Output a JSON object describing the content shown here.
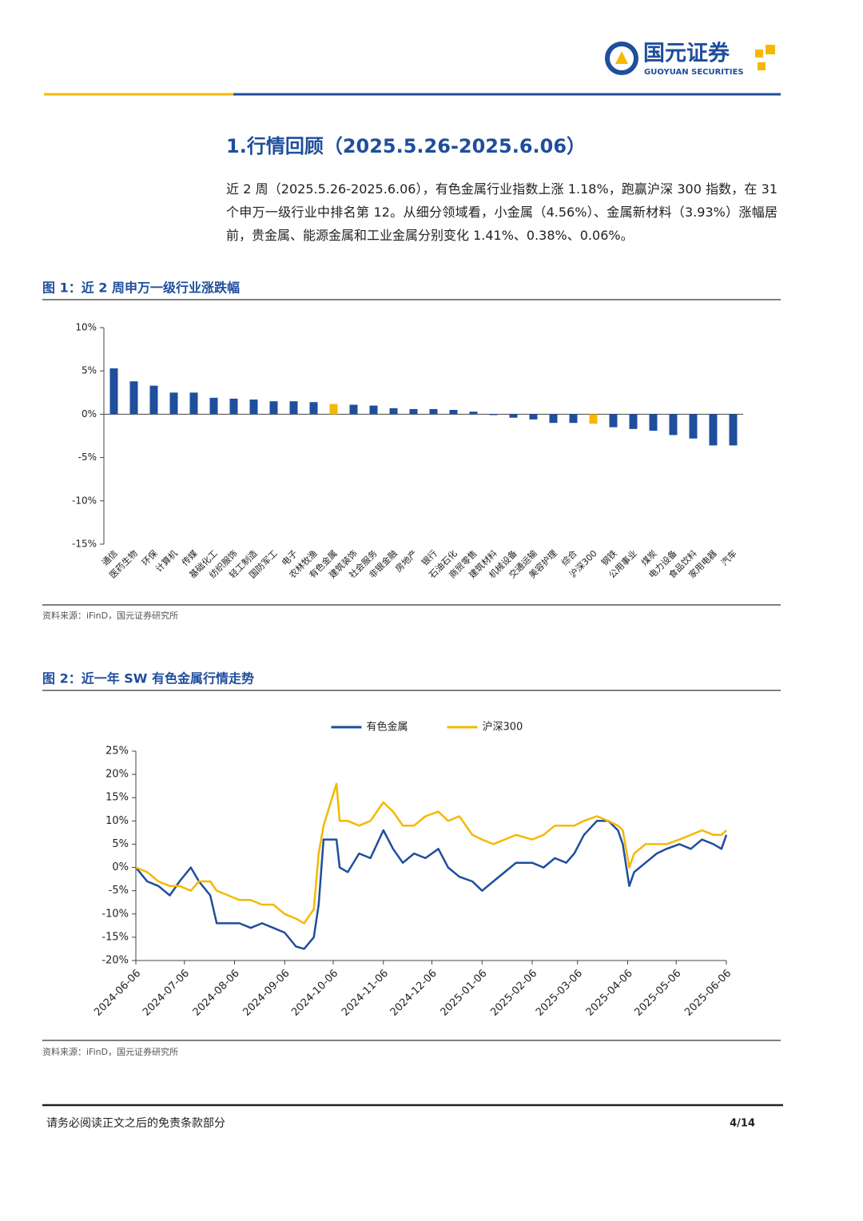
{
  "header": {
    "logo_cn": "国元证券",
    "logo_en": "GUOYUAN SECURITIES"
  },
  "section": {
    "title": "1.行情回顾（2025.5.26-2025.6.06）",
    "paragraph": "近 2 周（2025.5.26-2025.6.06），有色金属行业指数上涨 1.18%，跑赢沪深 300 指数，在 31 个申万一级行业中排名第 12。从细分领域看，小金属（4.56%）、金属新材料（3.93%）涨幅居前，贵金属、能源金属和工业金属分别变化 1.41%、0.38%、0.06%。"
  },
  "figures": [
    {
      "title": "图 1：近 2 周申万一级行业涨跌幅",
      "source": "资料来源：iFinD，国元证券研究所"
    },
    {
      "title": "图 2：近一年 SW 有色金属行情走势",
      "source": "资料来源：iFinD，国元证券研究所"
    }
  ],
  "chart_data": [
    {
      "type": "bar",
      "categories": [
        "通信",
        "医药生物",
        "环保",
        "计算机",
        "传媒",
        "基础化工",
        "纺织服饰",
        "轻工制造",
        "国防军工",
        "电子",
        "农林牧渔",
        "有色金属",
        "建筑装饰",
        "社会服务",
        "非银金融",
        "房地产",
        "银行",
        "石油石化",
        "商贸零售",
        "建筑材料",
        "机械设备",
        "交通运输",
        "美容护理",
        "综合",
        "沪深300",
        "钢铁",
        "公用事业",
        "煤炭",
        "电力设备",
        "食品饮料",
        "家用电器",
        "汽车"
      ],
      "values": [
        5.3,
        3.8,
        3.3,
        2.5,
        2.5,
        1.9,
        1.8,
        1.7,
        1.5,
        1.5,
        1.4,
        1.18,
        1.1,
        1.0,
        0.7,
        0.6,
        0.6,
        0.5,
        0.3,
        -0.1,
        -0.4,
        -0.6,
        -1.0,
        -1.0,
        -1.1,
        -1.5,
        -1.7,
        -1.9,
        -2.4,
        -2.8,
        -3.6,
        -3.6
      ],
      "colors": [
        "#1f4e9c",
        "#1f4e9c",
        "#1f4e9c",
        "#1f4e9c",
        "#1f4e9c",
        "#1f4e9c",
        "#1f4e9c",
        "#1f4e9c",
        "#1f4e9c",
        "#1f4e9c",
        "#1f4e9c",
        "#f5b800",
        "#1f4e9c",
        "#1f4e9c",
        "#1f4e9c",
        "#1f4e9c",
        "#1f4e9c",
        "#1f4e9c",
        "#1f4e9c",
        "#1f4e9c",
        "#1f4e9c",
        "#1f4e9c",
        "#1f4e9c",
        "#1f4e9c",
        "#f5b800",
        "#1f4e9c",
        "#1f4e9c",
        "#1f4e9c",
        "#1f4e9c",
        "#1f4e9c",
        "#1f4e9c",
        "#1f4e9c"
      ],
      "ylim": [
        -15,
        10
      ],
      "yticks": [
        {
          "value": 10,
          "label": "10%"
        },
        {
          "value": 5,
          "label": "5%"
        },
        {
          "value": 0,
          "label": "0%"
        },
        {
          "value": -5,
          "label": "-5%"
        },
        {
          "value": -10,
          "label": "-10%"
        },
        {
          "value": -15,
          "label": "-15%"
        }
      ]
    },
    {
      "type": "line",
      "x": [
        "2024-06-06",
        "2024-06-13",
        "2024-06-20",
        "2024-06-27",
        "2024-07-03",
        "2024-07-10",
        "2024-07-15",
        "2024-07-22",
        "2024-07-26",
        "2024-08-02",
        "2024-08-09",
        "2024-08-16",
        "2024-08-23",
        "2024-08-30",
        "2024-09-06",
        "2024-09-13",
        "2024-09-18",
        "2024-09-24",
        "2024-09-27",
        "2024-09-30",
        "2024-10-08",
        "2024-10-10",
        "2024-10-15",
        "2024-10-22",
        "2024-10-29",
        "2024-11-06",
        "2024-11-12",
        "2024-11-18",
        "2024-11-25",
        "2024-12-02",
        "2024-12-10",
        "2024-12-16",
        "2024-12-23",
        "2024-12-31",
        "2025-01-06",
        "2025-01-13",
        "2025-01-20",
        "2025-01-27",
        "2025-02-06",
        "2025-02-13",
        "2025-02-20",
        "2025-02-27",
        "2025-03-04",
        "2025-03-10",
        "2025-03-18",
        "2025-03-25",
        "2025-03-31",
        "2025-04-03",
        "2025-04-07",
        "2025-04-10",
        "2025-04-17",
        "2025-04-24",
        "2025-04-30",
        "2025-05-08",
        "2025-05-15",
        "2025-05-22",
        "2025-05-29",
        "2025-06-03",
        "2025-06-06"
      ],
      "series": [
        {
          "name": "有色金属",
          "color": "#1f4e9c",
          "values": [
            0,
            -3,
            -4,
            -6,
            -3,
            0,
            -3,
            -6,
            -12,
            -12,
            -12,
            -13,
            -12,
            -13,
            -14,
            -17,
            -17.5,
            -15,
            -8,
            6,
            6,
            0,
            -1,
            3,
            2,
            8,
            4,
            1,
            3,
            2,
            4,
            0,
            -2,
            -3,
            -5,
            -3,
            -1,
            1,
            1,
            0,
            2,
            1,
            3,
            7,
            10,
            10,
            8,
            5,
            -4,
            -1,
            1,
            3,
            4,
            5,
            4,
            6,
            5,
            4,
            7
          ]
        },
        {
          "name": "沪深300",
          "color": "#f5b800",
          "values": [
            0,
            -1,
            -3,
            -4,
            -4,
            -5,
            -3,
            -3,
            -5,
            -6,
            -7,
            -7,
            -8,
            -8,
            -10,
            -11,
            -12,
            -9,
            3,
            9,
            18,
            10,
            10,
            9,
            10,
            14,
            12,
            9,
            9,
            11,
            12,
            10,
            11,
            7,
            6,
            5,
            6,
            7,
            6,
            7,
            9,
            9,
            9,
            10,
            11,
            10,
            9,
            8,
            0,
            3,
            5,
            5,
            5,
            6,
            7,
            8,
            7,
            7,
            8
          ]
        }
      ],
      "xlim": [
        "2024-06-06",
        "2025-06-06"
      ],
      "xticks": [
        "2024-06-06",
        "2024-07-06",
        "2024-08-06",
        "2024-09-06",
        "2024-10-06",
        "2024-11-06",
        "2024-12-06",
        "2025-01-06",
        "2025-02-06",
        "2025-03-06",
        "2025-04-06",
        "2025-05-06",
        "2025-06-06"
      ],
      "ylim": [
        -20,
        25
      ],
      "yticks": [
        {
          "value": 25,
          "label": "25%"
        },
        {
          "value": 20,
          "label": "20%"
        },
        {
          "value": 15,
          "label": "15%"
        },
        {
          "value": 10,
          "label": "10%"
        },
        {
          "value": 5,
          "label": "5%"
        },
        {
          "value": 0,
          "label": "0%"
        },
        {
          "value": -5,
          "label": "-5%"
        },
        {
          "value": -10,
          "label": "-10%"
        },
        {
          "value": -15,
          "label": "-15%"
        },
        {
          "value": -20,
          "label": "-20%"
        }
      ]
    }
  ],
  "footer": {
    "disclaimer": "请务必阅读正文之后的免责条款部分",
    "page": "4/14"
  }
}
